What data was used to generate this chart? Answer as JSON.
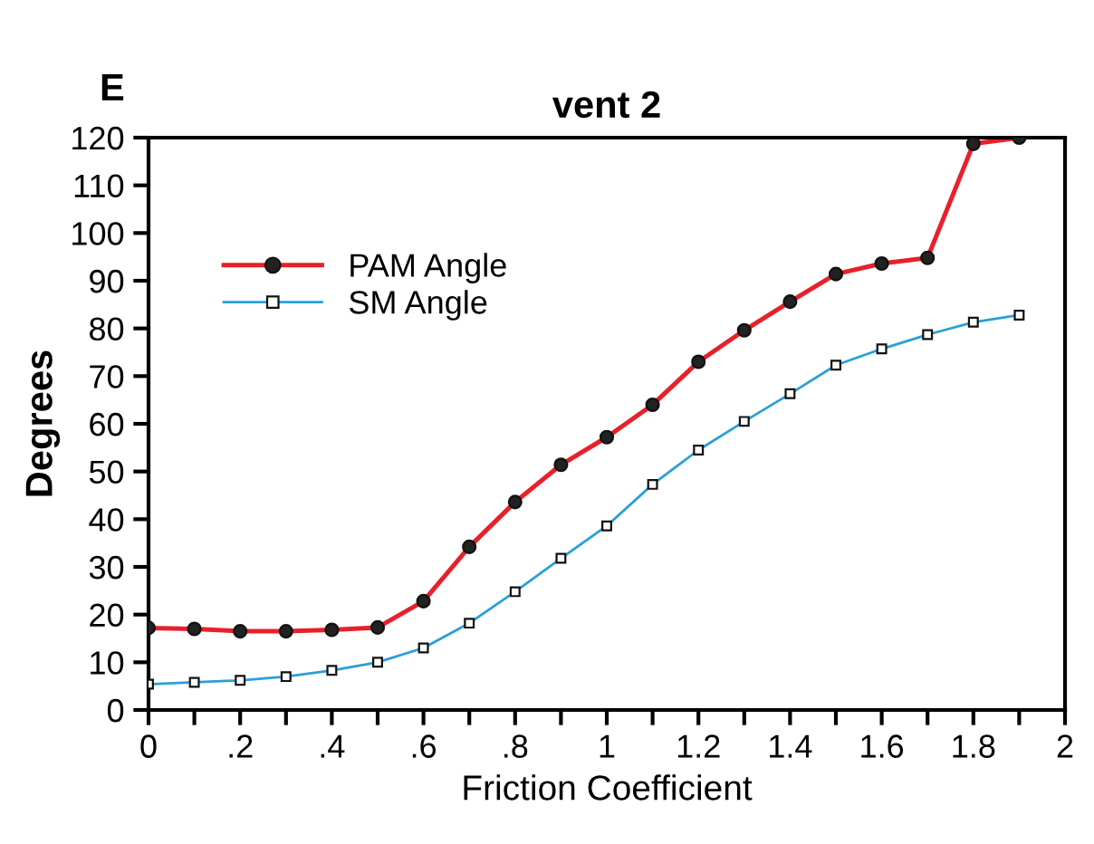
{
  "chart_data": {
    "type": "line",
    "title": "vent 2",
    "xlabel": "Friction Coefficient",
    "ylabel": "Degrees",
    "annotations": [
      "E"
    ],
    "x": [
      0,
      0.1,
      0.2,
      0.3,
      0.4,
      0.5,
      0.6,
      0.7,
      0.8,
      0.9,
      1.0,
      1.1,
      1.2,
      1.3,
      1.4,
      1.5,
      1.6,
      1.7,
      1.8,
      1.9
    ],
    "series": [
      {
        "name": "PAM Angle",
        "color": "#e8202a",
        "marker": "circle",
        "values": [
          17.2,
          17,
          16.5,
          16.5,
          16.8,
          17.3,
          22.8,
          34.2,
          43.6,
          51.4,
          57.2,
          64,
          73,
          79.6,
          85.6,
          91.4,
          93.6,
          94.8,
          118.7,
          120
        ]
      },
      {
        "name": "SM Angle",
        "color": "#2a9fd8",
        "marker": "square",
        "values": [
          5.4,
          5.8,
          6.2,
          7,
          8.3,
          10,
          13,
          18.2,
          24.8,
          31.8,
          38.6,
          47.3,
          54.5,
          60.5,
          66.3,
          72.3,
          75.7,
          78.7,
          81.3,
          82.8
        ]
      }
    ],
    "xlim": [
      0,
      2
    ],
    "ylim": [
      0,
      120
    ],
    "xticks": [
      0,
      {
        "value": 0.1,
        "label": null
      },
      {
        "value": 0.2,
        "label": ".2"
      },
      {
        "value": 0.3,
        "label": null
      },
      {
        "value": 0.4,
        "label": ".4"
      },
      {
        "value": 0.5,
        "label": null
      },
      {
        "value": 0.6,
        "label": ".6"
      },
      {
        "value": 0.7,
        "label": null
      },
      {
        "value": 0.8,
        "label": ".8"
      },
      {
        "value": 0.9,
        "label": null
      },
      1,
      {
        "value": 1.1,
        "label": null
      },
      1.2,
      {
        "value": 1.3,
        "label": null
      },
      1.4,
      {
        "value": 1.5,
        "label": null
      },
      1.6,
      {
        "value": 1.7,
        "label": null
      },
      1.8,
      {
        "value": 1.9,
        "label": null
      },
      2
    ],
    "yticks": [
      0,
      10,
      20,
      30,
      40,
      50,
      60,
      70,
      80,
      90,
      100,
      110,
      120
    ],
    "grid": false,
    "legend": "top left",
    "line_style": "solid"
  }
}
